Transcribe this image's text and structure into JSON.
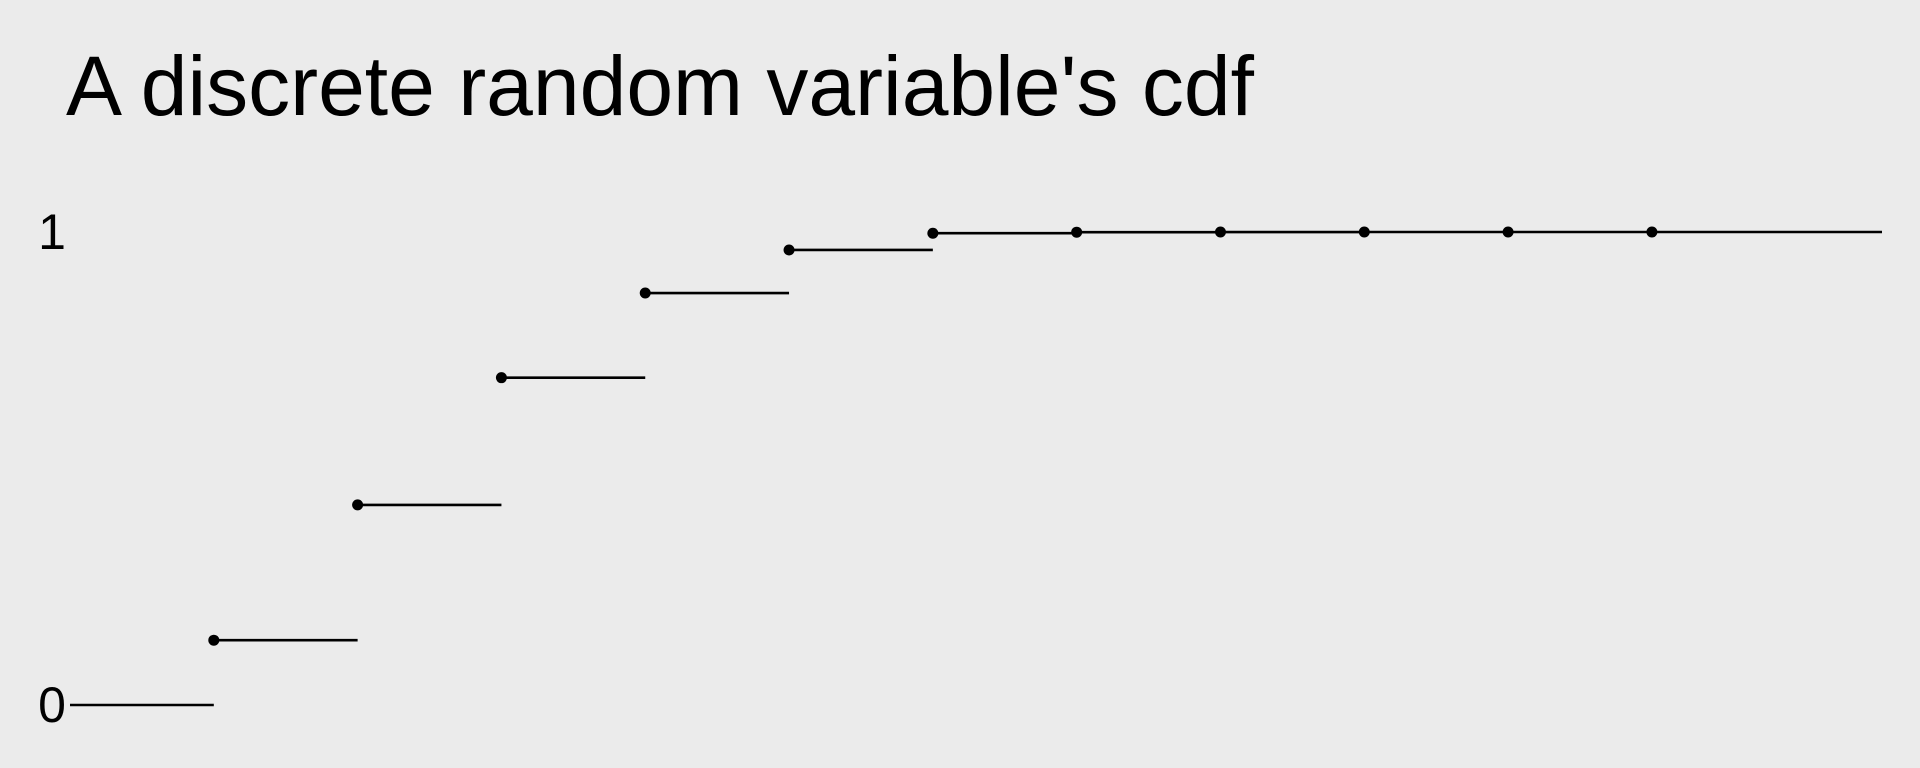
{
  "slide": {
    "title": "A discrete random variable's cdf"
  },
  "chart_data": {
    "type": "line",
    "step": true,
    "title": "A discrete random variable's cdf",
    "xlabel": "",
    "ylabel": "",
    "x_jumps": [
      1,
      2,
      3,
      4,
      5,
      6,
      7,
      8,
      9,
      10,
      11
    ],
    "cdf_values": [
      0.137,
      0.423,
      0.692,
      0.871,
      0.962,
      0.9974,
      0.9996,
      0.99995,
      0.999995,
      0.9999996,
      1.0
    ],
    "initial_value": 0,
    "xlim": [
      0,
      12.6
    ],
    "ylim": [
      0,
      1
    ],
    "yticks": [
      {
        "value": 0,
        "label": "0"
      },
      {
        "value": 1,
        "label": "1"
      }
    ],
    "grid": false,
    "legend": "none"
  }
}
